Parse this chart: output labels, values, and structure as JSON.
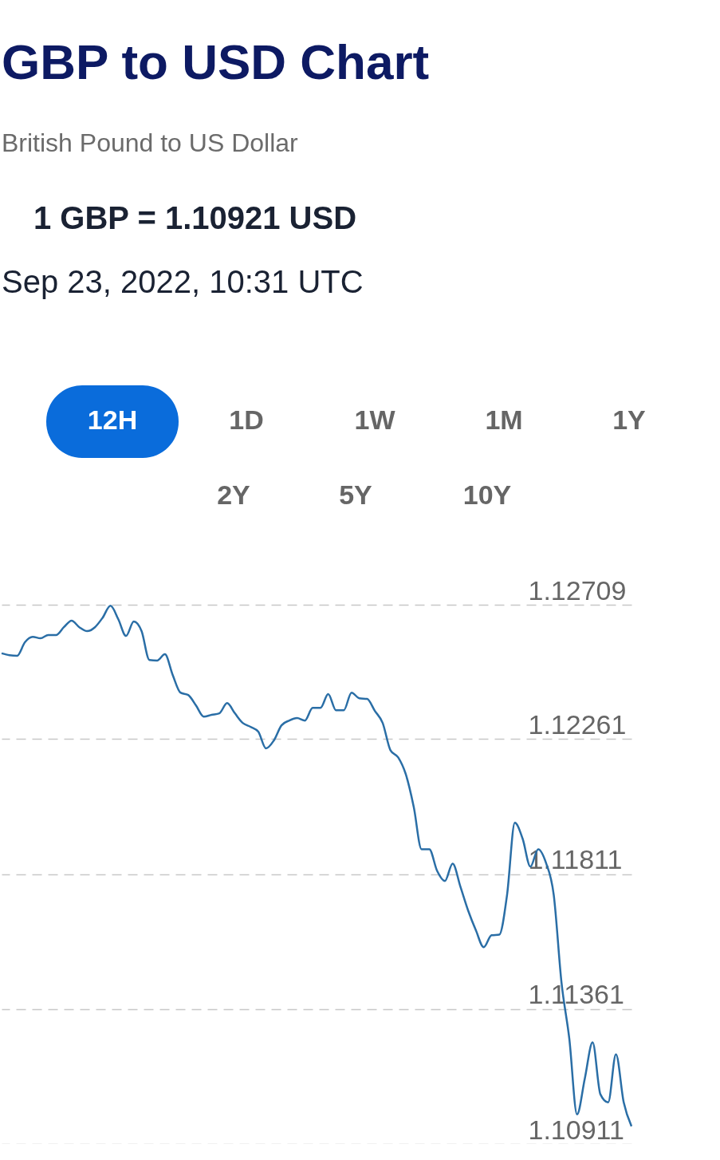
{
  "chart_data": {
    "type": "line",
    "title": "GBP to USD Chart",
    "subtitle": "British Pound to US Dollar",
    "annotations": [
      "1 GBP = 1.10921 USD",
      "Sep 23, 2022, 10:31 UTC",
      "12H",
      "1D",
      "1W",
      "1M",
      "1Y",
      "2Y",
      "5Y",
      "10Y"
    ],
    "categories": [
      null,
      null,
      null,
      null,
      null,
      null,
      null,
      null,
      null,
      null,
      null,
      null,
      null,
      null,
      null,
      null,
      null,
      null,
      null,
      null,
      null,
      null,
      null,
      null,
      null,
      null,
      null,
      null,
      null,
      null,
      null,
      null,
      null,
      null,
      null,
      null,
      null,
      null,
      null,
      null,
      null,
      null,
      null,
      null,
      null,
      null,
      null,
      null,
      null,
      null,
      null,
      null,
      null,
      null,
      null,
      null,
      null,
      null,
      null,
      null,
      null,
      null,
      null,
      null,
      null,
      null,
      null,
      null,
      null,
      null,
      null,
      null,
      null,
      null,
      null,
      null,
      null,
      null,
      null,
      null,
      null,
      null
    ],
    "series": [
      {
        "color": "#2a6ea6",
        "values": [
          1.12547,
          1.12541,
          1.12539,
          1.12584,
          1.12602,
          1.12597,
          1.12608,
          1.12608,
          1.12634,
          1.12656,
          1.12634,
          1.12621,
          1.12634,
          1.12666,
          1.12706,
          1.12661,
          1.12605,
          1.12653,
          1.12621,
          1.12525,
          1.12523,
          1.12544,
          1.12475,
          1.12416,
          1.12408,
          1.12373,
          1.12336,
          1.12342,
          1.12347,
          1.12381,
          1.12347,
          1.12315,
          1.12302,
          1.12286,
          1.1223,
          1.12256,
          1.12307,
          1.12323,
          1.12331,
          1.12323,
          1.12365,
          1.12365,
          1.12411,
          1.12357,
          1.12357,
          1.12416,
          1.12397,
          1.12395,
          1.12355,
          1.12315,
          1.12224,
          1.122,
          1.12142,
          1.12035,
          1.11894,
          1.11894,
          1.11822,
          1.11788,
          1.11846,
          1.11769,
          1.11689,
          1.11623,
          1.11567,
          1.11607,
          1.11609,
          1.11742,
          1.11982,
          1.11929,
          1.11836,
          1.11894,
          1.11849,
          1.11742,
          1.11449,
          1.11263,
          1.1101,
          1.1113,
          1.1125,
          1.11077,
          1.1105,
          1.1121,
          1.1105,
          1.1097
        ]
      }
    ],
    "ylim": [
      1.10911,
      1.12709
    ],
    "yticks": [
      1.10911,
      1.11361,
      1.11811,
      1.12261,
      1.12709
    ],
    "grid": "y",
    "tick_labels": "y"
  }
}
